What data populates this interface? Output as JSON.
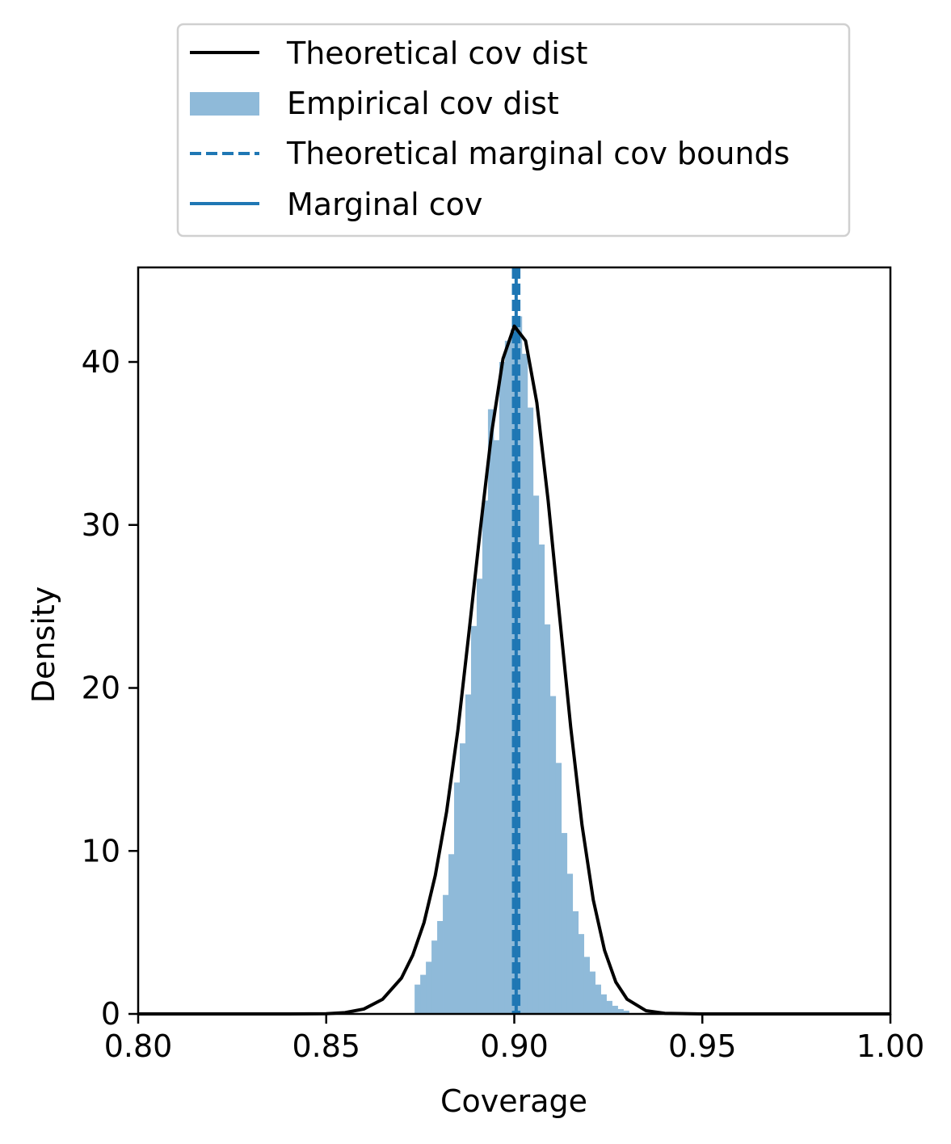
{
  "chart_data": {
    "type": "histogram",
    "title": "",
    "xlabel": "Coverage",
    "ylabel": "Density",
    "xlim": [
      0.8,
      1.0
    ],
    "ylim": [
      0,
      45.8
    ],
    "xticks": [
      0.8,
      0.85,
      0.9,
      0.95,
      1.0
    ],
    "xtick_labels": [
      "0.80",
      "0.85",
      "0.90",
      "0.95",
      "1.00"
    ],
    "yticks": [
      0,
      10,
      20,
      30,
      40
    ],
    "ytick_labels": [
      "0",
      "10",
      "20",
      "30",
      "40"
    ],
    "grid": false,
    "legend_position": "above plot",
    "legend": [
      {
        "label": "Theoretical cov dist",
        "style": "line",
        "color": "#000000"
      },
      {
        "label": "Empirical cov dist",
        "style": "patch",
        "color": "#8fbad9"
      },
      {
        "label": "Theoretical marginal cov bounds",
        "style": "dashed",
        "color": "#1f77b4"
      },
      {
        "label": "Marginal cov",
        "style": "line",
        "color": "#1f77b4"
      }
    ],
    "histogram": {
      "name": "Empirical cov dist",
      "color": "#8fbad9",
      "bin_width": 0.0015,
      "bins": [
        {
          "x0": 0.8735,
          "y": 1.8
        },
        {
          "x0": 0.875,
          "y": 2.4
        },
        {
          "x0": 0.8765,
          "y": 3.2
        },
        {
          "x0": 0.878,
          "y": 4.5
        },
        {
          "x0": 0.8795,
          "y": 5.7
        },
        {
          "x0": 0.881,
          "y": 7.3
        },
        {
          "x0": 0.8825,
          "y": 9.8
        },
        {
          "x0": 0.884,
          "y": 14.2
        },
        {
          "x0": 0.8855,
          "y": 16.6
        },
        {
          "x0": 0.887,
          "y": 19.6
        },
        {
          "x0": 0.8885,
          "y": 23.8
        },
        {
          "x0": 0.89,
          "y": 26.7
        },
        {
          "x0": 0.8915,
          "y": 31.5
        },
        {
          "x0": 0.893,
          "y": 37.1
        },
        {
          "x0": 0.8945,
          "y": 35.2
        },
        {
          "x0": 0.896,
          "y": 40.0
        },
        {
          "x0": 0.8975,
          "y": 41.3
        },
        {
          "x0": 0.899,
          "y": 42.0
        },
        {
          "x0": 0.9005,
          "y": 42.8
        },
        {
          "x0": 0.902,
          "y": 40.5
        },
        {
          "x0": 0.9035,
          "y": 37.2
        },
        {
          "x0": 0.905,
          "y": 31.8
        },
        {
          "x0": 0.9065,
          "y": 28.8
        },
        {
          "x0": 0.908,
          "y": 23.9
        },
        {
          "x0": 0.9095,
          "y": 19.5
        },
        {
          "x0": 0.911,
          "y": 15.4
        },
        {
          "x0": 0.9125,
          "y": 11.1
        },
        {
          "x0": 0.914,
          "y": 8.6
        },
        {
          "x0": 0.9155,
          "y": 6.3
        },
        {
          "x0": 0.917,
          "y": 4.9
        },
        {
          "x0": 0.9185,
          "y": 3.5
        },
        {
          "x0": 0.92,
          "y": 2.6
        },
        {
          "x0": 0.9215,
          "y": 1.8
        },
        {
          "x0": 0.923,
          "y": 1.2
        },
        {
          "x0": 0.9245,
          "y": 0.8
        },
        {
          "x0": 0.926,
          "y": 0.5
        },
        {
          "x0": 0.9275,
          "y": 0.3
        },
        {
          "x0": 0.929,
          "y": 0.2
        }
      ]
    },
    "theoretical_curve": {
      "name": "Theoretical cov dist",
      "color": "#000000",
      "x": [
        0.8,
        0.82,
        0.84,
        0.85,
        0.855,
        0.86,
        0.865,
        0.87,
        0.873,
        0.876,
        0.879,
        0.882,
        0.885,
        0.888,
        0.891,
        0.894,
        0.897,
        0.9,
        0.903,
        0.906,
        0.909,
        0.912,
        0.915,
        0.918,
        0.921,
        0.924,
        0.927,
        0.93,
        0.935,
        0.94,
        0.95,
        0.97,
        1.0
      ],
      "y": [
        0,
        0,
        0,
        0.01,
        0.08,
        0.3,
        0.9,
        2.2,
        3.6,
        5.6,
        8.5,
        12.4,
        17.4,
        23.5,
        29.8,
        35.7,
        40.2,
        42.2,
        41.3,
        37.5,
        31.5,
        24.5,
        17.6,
        11.6,
        7.0,
        3.9,
        1.95,
        0.9,
        0.2,
        0.04,
        0,
        0,
        0
      ]
    },
    "marginal_cov": {
      "name": "Marginal cov",
      "x": 0.9005,
      "color": "#1f77b4"
    },
    "marginal_bounds": {
      "name": "Theoretical marginal cov bounds",
      "x": [
        0.8998,
        0.9012
      ],
      "color": "#1f77b4"
    }
  }
}
